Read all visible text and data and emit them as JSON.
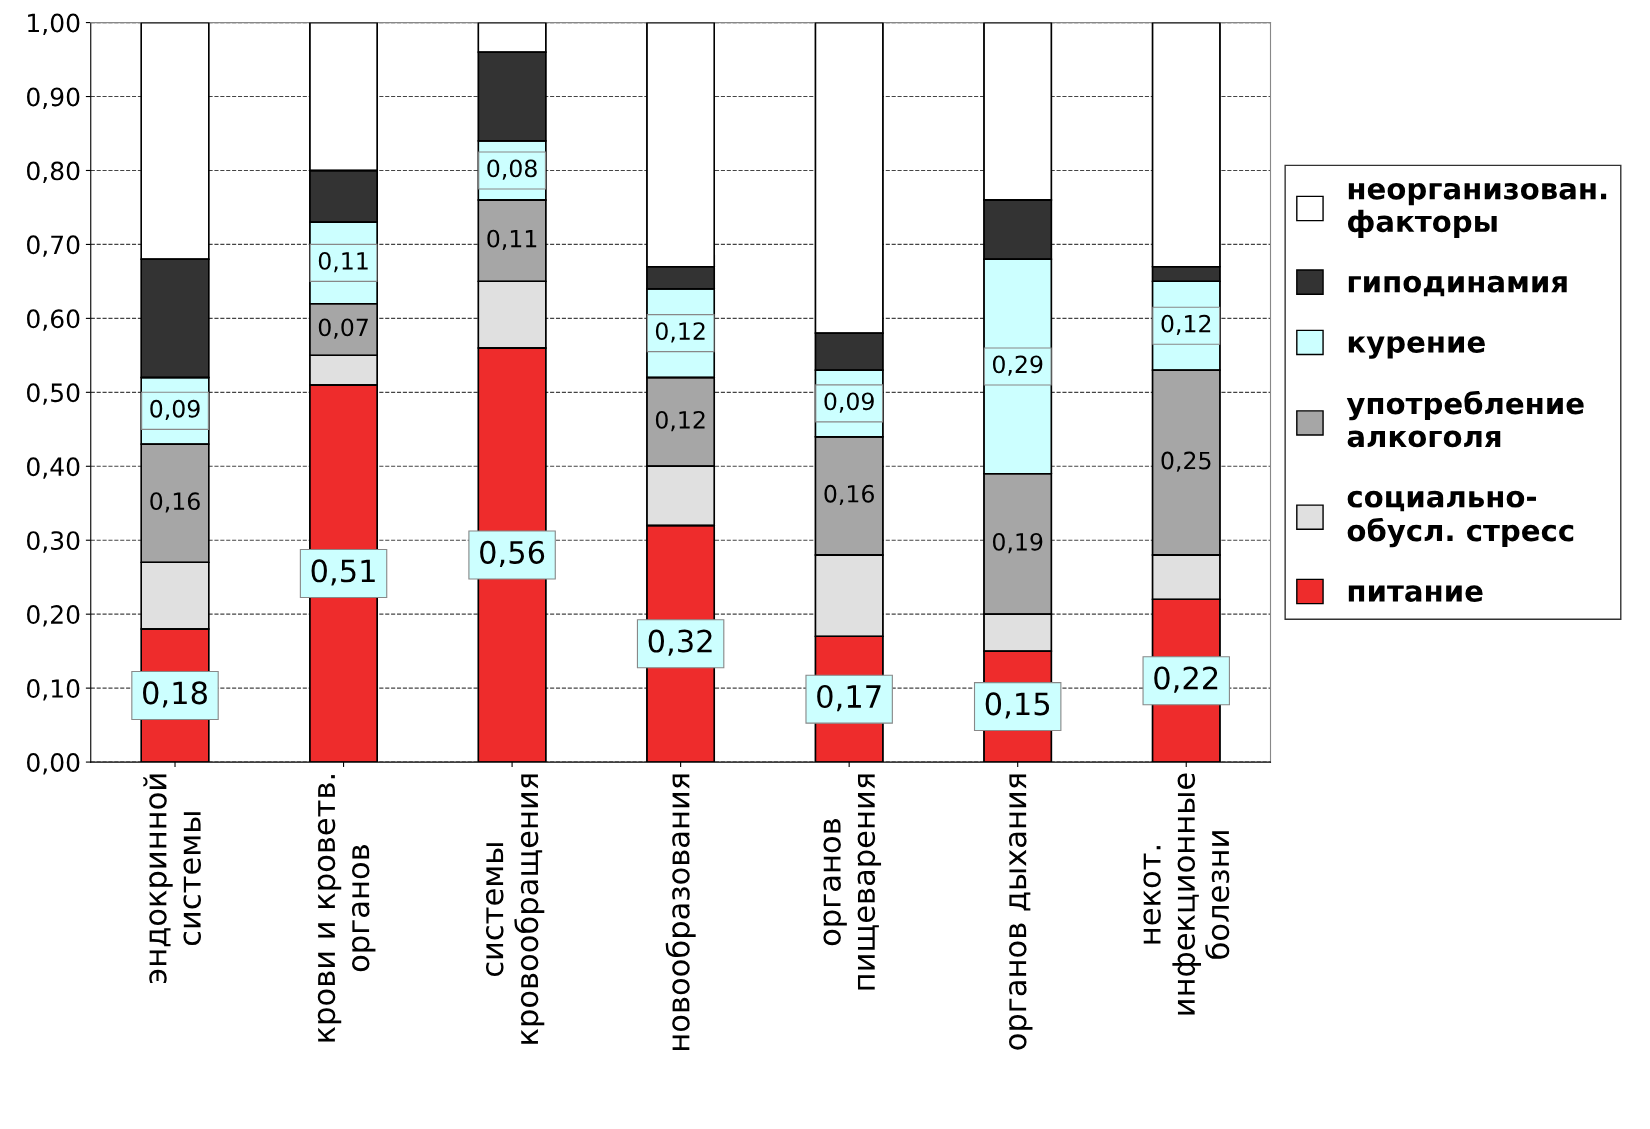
{
  "chart_data": {
    "type": "bar",
    "stacked": true,
    "categories": [
      "эндокринной\nсистемы",
      "крови и кроветв.\nорганов",
      "системы\nкровообращения",
      "новообразования",
      "органов\nпищеварения",
      "органов дыхания",
      "некот.\nинфекционные\nболезни"
    ],
    "series": [
      {
        "name": "питание",
        "color": "#ee2c2c",
        "values": [
          0.18,
          0.51,
          0.56,
          0.32,
          0.17,
          0.15,
          0.22
        ],
        "value_labels": [
          "0,18",
          "0,51",
          "0,56",
          "0,32",
          "0,17",
          "0,15",
          "0,22"
        ]
      },
      {
        "name": "социально-\nобусл. стресс",
        "color": "#e0e0e0",
        "values": [
          0.09,
          0.04,
          0.09,
          0.08,
          0.11,
          0.05,
          0.06
        ]
      },
      {
        "name": "употребление\nалкоголя",
        "color": "#a6a6a6",
        "values": [
          0.16,
          0.07,
          0.11,
          0.12,
          0.16,
          0.19,
          0.25
        ],
        "value_labels": [
          "0,16",
          "0,07",
          "0,11",
          "0,12",
          "0,16",
          "0,19",
          "0,25"
        ]
      },
      {
        "name": "курение",
        "color": "#ccffff",
        "values": [
          0.09,
          0.11,
          0.08,
          0.12,
          0.09,
          0.29,
          0.12
        ],
        "value_labels": [
          "0,09",
          "0,11",
          "0,08",
          "0,12",
          "0,09",
          "0,29",
          "0,12"
        ]
      },
      {
        "name": "гиподинамия",
        "color": "#333333",
        "values": [
          0.16,
          0.07,
          0.12,
          0.03,
          0.05,
          0.08,
          0.02
        ]
      },
      {
        "name": "неорганизован.\nфакторы",
        "color": "#ffffff",
        "values": [
          0.32,
          0.2,
          0.04,
          0.33,
          0.42,
          0.24,
          0.33
        ]
      }
    ],
    "ylim": [
      0,
      1
    ],
    "yticks": [
      {
        "value": 0,
        "label": "0,00"
      },
      {
        "value": 0.1,
        "label": "0,10"
      },
      {
        "value": 0.2,
        "label": "0,20"
      },
      {
        "value": 0.3,
        "label": "0,30"
      },
      {
        "value": 0.4,
        "label": "0,40"
      },
      {
        "value": 0.5,
        "label": "0,50"
      },
      {
        "value": 0.6,
        "label": "0,60"
      },
      {
        "value": 0.7,
        "label": "0,70"
      },
      {
        "value": 0.8,
        "label": "0,80"
      },
      {
        "value": 0.9,
        "label": "0,90"
      },
      {
        "value": 1.0,
        "label": "1,00"
      }
    ],
    "grid": "y",
    "legend": "right"
  }
}
